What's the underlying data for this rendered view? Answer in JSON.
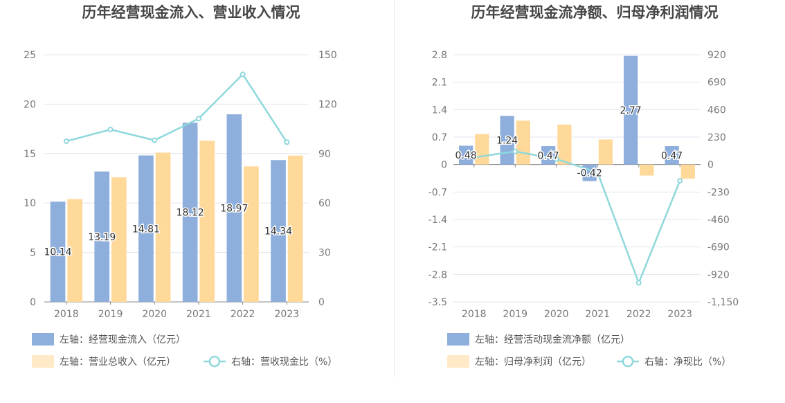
{
  "chart_data": [
    {
      "type": "bar",
      "title": "历年经营现金流入、营业收入情况",
      "categories": [
        "2018",
        "2019",
        "2020",
        "2021",
        "2022",
        "2023"
      ],
      "left_axis": {
        "ticks": [
          "0",
          "5",
          "10",
          "15",
          "20",
          "25"
        ],
        "range": [
          0,
          25
        ]
      },
      "right_axis": {
        "ticks": [
          "0",
          "30",
          "60",
          "90",
          "120",
          "150"
        ],
        "range": [
          0,
          150
        ]
      },
      "series": [
        {
          "name": "左轴：经营现金流入（亿元）",
          "type": "bar",
          "axis": "left",
          "color": "#8eaedc",
          "values": [
            10.14,
            13.19,
            14.81,
            18.12,
            18.97,
            14.34
          ],
          "labels": [
            "10.14",
            "13.19",
            "14.81",
            "18.12",
            "18.97",
            "14.34"
          ]
        },
        {
          "name": "左轴：营业总收入（亿元）",
          "type": "bar",
          "axis": "left",
          "color": "#ffd99a",
          "values": [
            10.4,
            12.6,
            15.1,
            16.3,
            13.7,
            14.8
          ]
        },
        {
          "name": "右轴：营收现金比（%）",
          "type": "line",
          "axis": "right",
          "color": "#8ed8dc",
          "values": [
            97.5,
            104.6,
            98.1,
            111.2,
            138.1,
            96.9
          ]
        }
      ],
      "grid": true
    },
    {
      "type": "bar",
      "title": "历年经营现金流净额、归母净利润情况",
      "categories": [
        "2018",
        "2019",
        "2020",
        "2021",
        "2022",
        "2023"
      ],
      "left_axis": {
        "ticks": [
          "-3.5",
          "-2.8",
          "-2.1",
          "-1.4",
          "-0.7",
          "0",
          "0.7",
          "1.4",
          "2.1",
          "2.8"
        ],
        "range": [
          -3.5,
          2.8
        ]
      },
      "right_axis": {
        "ticks": [
          "-1,150",
          "-920",
          "-690",
          "-460",
          "-230",
          "0",
          "230",
          "460",
          "690",
          "920"
        ],
        "range": [
          -1150,
          920
        ]
      },
      "series": [
        {
          "name": "左轴：经营活动现金流净额（亿元）",
          "type": "bar",
          "axis": "left",
          "color": "#8eaedc",
          "values": [
            0.48,
            1.24,
            0.47,
            -0.42,
            2.77,
            0.47
          ],
          "labels": [
            "0.48",
            "1.24",
            "0.47",
            "-0.42",
            "2.77",
            "0.47"
          ]
        },
        {
          "name": "左轴：归母净利润（亿元）",
          "type": "bar",
          "axis": "left",
          "color": "#ffd99a",
          "values": [
            0.78,
            1.12,
            1.02,
            0.64,
            -0.28,
            -0.36
          ]
        },
        {
          "name": "右轴：净现比（%）",
          "type": "line",
          "axis": "right",
          "color": "#8ed8dc",
          "values": [
            60,
            110,
            46,
            -66,
            -990,
            -135
          ]
        }
      ],
      "grid": true
    }
  ]
}
